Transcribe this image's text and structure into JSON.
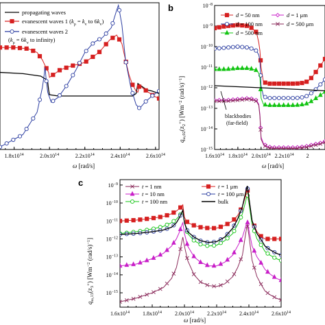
{
  "chart_data": [
    {
      "panel": "a",
      "type": "line",
      "xlabel": "ω [rad/s]",
      "xticks": [
        "1.8x10¹⁴",
        "2.0x10¹⁴",
        "2.2x10¹⁴",
        "2.4x10¹⁴",
        "2.6x10¹⁴"
      ],
      "xlim": [
        172000000000000.0,
        262000000000000.0
      ],
      "ylim_log": [
        -15.2,
        -9.3
      ],
      "series": [
        {
          "name": "propagating waves",
          "color": "#000000",
          "marker": "none",
          "x": [
            1.72,
            1.85,
            1.95,
            1.985,
            1.99,
            1.995,
            2.0,
            2.05,
            2.2,
            2.3,
            2.4,
            2.47,
            2.49,
            2.5,
            2.52,
            2.55,
            2.58,
            2.62
          ],
          "y": [
            -12.1,
            -12.15,
            -12.25,
            -12.4,
            -12.5,
            -12.8,
            -13.0,
            -13.05,
            -13.05,
            -13.05,
            -13.05,
            -13.05,
            -12.95,
            -12.55,
            -12.65,
            -12.8,
            -12.85,
            -12.95
          ]
        },
        {
          "name": "evanescent waves 1 (kρ = kv to 6kv)",
          "color": "#d62020",
          "marker": "square",
          "x": [
            1.72,
            1.8,
            1.88,
            1.93,
            1.96,
            1.98,
            1.995,
            2.0,
            2.02,
            2.06,
            2.12,
            2.2,
            2.28,
            2.34,
            2.38,
            2.41,
            2.43,
            2.45,
            2.47,
            2.49,
            2.5,
            2.51,
            2.53,
            2.56,
            2.59,
            2.62
          ],
          "y": [
            -11.1,
            -11.1,
            -11.15,
            -11.3,
            -11.6,
            -11.9,
            -12.1,
            -12.3,
            -12.2,
            -12.0,
            -11.85,
            -11.7,
            -11.3,
            -10.8,
            -10.6,
            -10.95,
            -11.6,
            -12.2,
            -12.6,
            -12.85,
            -12.9,
            -12.6,
            -12.75,
            -12.9,
            -13.05,
            -13.15
          ]
        },
        {
          "name": "evanescent waves 2 (kρ = 6kv to infinity)",
          "color": "#2a3ca0",
          "marker": "circle",
          "x": [
            1.72,
            1.85,
            1.93,
            1.96,
            1.97,
            1.975,
            1.98,
            1.99,
            2.01,
            2.05,
            2.1,
            2.15,
            2.2,
            2.25,
            2.3,
            2.35,
            2.38,
            2.39,
            2.41,
            2.43,
            2.46,
            2.49,
            2.51,
            2.54,
            2.58,
            2.62
          ],
          "y": [
            -15.1,
            -14.6,
            -13.7,
            -12.7,
            -12.2,
            -11.9,
            -12.3,
            -12.9,
            -13.3,
            -13.1,
            -12.6,
            -12.0,
            -11.3,
            -10.9,
            -10.7,
            -10.3,
            -9.6,
            -9.4,
            -10.2,
            -11.6,
            -12.7,
            -13.4,
            -13.55,
            -13.3,
            -13.05,
            -12.85
          ]
        }
      ]
    },
    {
      "panel": "b",
      "type": "line",
      "xlabel": "ω [rad/s]",
      "ylabel": "q_ω,02(z₂⁺) [Wm⁻² (rad/s)⁻¹]",
      "xticks": [
        "1.6x10¹⁴",
        "1.8x10¹⁴",
        "2.0x10¹⁴",
        "2.2x10¹⁴",
        "2"
      ],
      "xlim": [
        160000000000000.0,
        255000000000000.0
      ],
      "ylim_log": [
        -15,
        -8
      ],
      "yticks": [
        "10⁻⁸",
        "10⁻⁹",
        "10⁻¹⁰",
        "10⁻¹¹",
        "10⁻¹²",
        "10⁻¹³",
        "10⁻¹⁴",
        "10⁻¹⁵"
      ],
      "annotation": "blackbodies\n(far-field)",
      "series": [
        {
          "name": "d = 50 nm",
          "color": "#d62020",
          "marker": "square",
          "x": [
            1.6,
            1.7,
            1.8,
            1.9,
            1.96,
            1.98,
            1.99,
            2.0,
            2.02,
            2.05,
            2.1,
            2.2,
            2.3,
            2.38,
            2.42,
            2.45,
            2.5,
            2.55
          ],
          "y": [
            -9.1,
            -9.0,
            -8.95,
            -9.0,
            -9.3,
            -9.8,
            -10.2,
            -11.0,
            -11.7,
            -11.8,
            -11.8,
            -11.8,
            -11.8,
            -11.75,
            -11.6,
            -11.4,
            -11.0,
            -10.6
          ]
        },
        {
          "name": "d = 100 nm",
          "color": "#2a3ca0",
          "marker": "circle",
          "x": [
            1.6,
            1.7,
            1.8,
            1.9,
            1.96,
            1.98,
            1.99,
            2.0,
            2.02,
            2.05,
            2.1,
            2.2,
            2.3,
            2.38,
            2.42,
            2.45,
            2.5,
            2.55
          ],
          "y": [
            -10.1,
            -10.05,
            -10.0,
            -10.05,
            -10.2,
            -10.4,
            -10.7,
            -11.9,
            -12.4,
            -12.5,
            -12.5,
            -12.5,
            -12.5,
            -12.45,
            -12.3,
            -12.2,
            -11.9,
            -11.6
          ]
        },
        {
          "name": "d = 500 nm",
          "color": "#12c412",
          "marker": "triangle",
          "x": [
            1.6,
            1.7,
            1.8,
            1.9,
            1.96,
            1.98,
            1.99,
            2.0,
            2.02,
            2.05,
            2.1,
            2.2,
            2.3,
            2.38,
            2.42,
            2.45,
            2.5,
            2.55
          ],
          "y": [
            -11.1,
            -11.1,
            -11.05,
            -11.05,
            -11.15,
            -11.3,
            -11.5,
            -12.5,
            -12.8,
            -12.85,
            -12.85,
            -12.85,
            -12.85,
            -12.8,
            -12.7,
            -12.6,
            -12.4,
            -12.2
          ]
        },
        {
          "name": "d = 1 μm",
          "color": "#c81ec8",
          "marker": "diamond",
          "x": [
            1.6,
            1.7,
            1.8,
            1.9,
            1.96,
            1.98,
            1.99,
            2.0,
            2.02,
            2.05,
            2.1,
            2.2,
            2.3,
            2.38,
            2.42,
            2.45,
            2.5,
            2.55
          ],
          "y": [
            -12.6,
            -12.6,
            -12.55,
            -12.5,
            -12.6,
            -12.8,
            -13.3,
            -14.4,
            -14.7,
            -14.85,
            -14.9,
            -14.9,
            -14.9,
            -14.85,
            -14.8,
            -14.75,
            -14.7,
            -14.6
          ]
        },
        {
          "name": "d = 500 μm",
          "color": "#8a2a5a",
          "marker": "cross",
          "x": [
            1.6,
            1.7,
            1.8,
            1.9,
            1.96,
            1.98,
            1.99,
            2.0,
            2.02,
            2.05,
            2.1,
            2.2,
            2.3,
            2.38,
            2.42,
            2.45,
            2.5,
            2.55
          ],
          "y": [
            -12.65,
            -12.65,
            -12.6,
            -12.55,
            -12.65,
            -12.85,
            -13.4,
            -14.5,
            -14.75,
            -14.9,
            -14.95,
            -14.95,
            -14.95,
            -14.9,
            -14.85,
            -14.8,
            -14.75,
            -14.65
          ]
        },
        {
          "name": "blackbodies",
          "color": "#000000",
          "marker": "none",
          "x": [
            1.6,
            1.8,
            2.0,
            2.2,
            2.4,
            2.55
          ],
          "y": [
            -11.9,
            -11.95,
            -12.0,
            -12.05,
            -12.1,
            -12.15
          ]
        }
      ]
    },
    {
      "panel": "c",
      "type": "line",
      "xlabel": "ω [rad/s]",
      "ylabel": "q_ω,13(z₃⁺) [Wm⁻² (rad/s)⁻¹]",
      "xticks": [
        "1.6x10¹⁴",
        "1.8x10¹⁴",
        "2.0x10¹⁴",
        "2.2x10¹⁴",
        "2.4x10¹⁴",
        "2.6x10¹⁴"
      ],
      "xlim": [
        160000000000000.0,
        260000000000000.0
      ],
      "ylim_log": [
        -15.8,
        -8.7
      ],
      "yticks": [
        "10⁻⁹",
        "10⁻¹⁰",
        "10⁻¹¹",
        "10⁻¹²",
        "10⁻¹³",
        "10⁻¹⁴",
        "10⁻¹⁵"
      ],
      "series": [
        {
          "name": "t = 1 nm",
          "color": "#8a2a5a",
          "marker": "cross",
          "x": [
            1.6,
            1.7,
            1.8,
            1.87,
            1.92,
            1.95,
            1.97,
            1.985,
            1.99,
            2.0,
            2.02,
            2.06,
            2.1,
            2.15,
            2.2,
            2.25,
            2.3,
            2.33,
            2.36,
            2.38,
            2.39,
            2.4,
            2.42,
            2.45,
            2.48,
            2.5,
            2.53,
            2.57,
            2.6
          ],
          "y": [
            -15.5,
            -15.3,
            -15.0,
            -14.7,
            -14.2,
            -13.6,
            -12.8,
            -12.1,
            -11.9,
            -12.4,
            -13.2,
            -14.0,
            -14.4,
            -14.6,
            -14.65,
            -14.5,
            -14.1,
            -13.6,
            -12.9,
            -11.7,
            -11.2,
            -11.8,
            -13.2,
            -14.1,
            -14.6,
            -14.9,
            -15.1,
            -15.3,
            -15.4
          ]
        },
        {
          "name": "t = 10 nm",
          "color": "#c81ec8",
          "marker": "triangle",
          "x": [
            1.6,
            1.7,
            1.8,
            1.87,
            1.92,
            1.95,
            1.97,
            1.985,
            1.99,
            2.0,
            2.02,
            2.06,
            2.1,
            2.15,
            2.2,
            2.25,
            2.3,
            2.33,
            2.36,
            2.38,
            2.39,
            2.4,
            2.42,
            2.45,
            2.48,
            2.5,
            2.53,
            2.57,
            2.6
          ],
          "y": [
            -13.5,
            -13.4,
            -13.1,
            -12.8,
            -12.4,
            -12.0,
            -11.6,
            -11.2,
            -11.1,
            -11.7,
            -12.4,
            -13.0,
            -13.3,
            -13.5,
            -13.5,
            -13.3,
            -12.9,
            -12.4,
            -11.9,
            -11.3,
            -11.0,
            -11.5,
            -12.4,
            -13.0,
            -13.4,
            -13.7,
            -13.95,
            -14.2,
            -14.3
          ]
        },
        {
          "name": "t = 100 nm",
          "color": "#12c412",
          "marker": "circle-open",
          "x": [
            1.6,
            1.7,
            1.8,
            1.87,
            1.92,
            1.95,
            1.97,
            1.985,
            1.99,
            2.0,
            2.02,
            2.06,
            2.1,
            2.15,
            2.2,
            2.25,
            2.3,
            2.33,
            2.36,
            2.38,
            2.39,
            2.4,
            2.42,
            2.45,
            2.48,
            2.5,
            2.53,
            2.57,
            2.6
          ],
          "y": [
            -11.7,
            -11.6,
            -11.45,
            -11.3,
            -11.1,
            -10.9,
            -10.7,
            -10.5,
            -10.45,
            -11.1,
            -11.7,
            -12.1,
            -12.3,
            -12.4,
            -12.35,
            -12.1,
            -11.7,
            -11.2,
            -10.6,
            -9.9,
            -9.5,
            -10.0,
            -11.2,
            -12.0,
            -12.4,
            -12.7,
            -12.9,
            -13.1,
            -13.2
          ]
        },
        {
          "name": "t = 1 μm",
          "color": "#d62020",
          "marker": "square",
          "x": [
            1.6,
            1.7,
            1.8,
            1.87,
            1.92,
            1.95,
            1.97,
            1.985,
            1.99,
            2.0,
            2.02,
            2.06,
            2.1,
            2.15,
            2.2,
            2.25,
            2.3,
            2.33,
            2.36,
            2.38,
            2.39,
            2.4,
            2.42,
            2.45,
            2.48,
            2.5,
            2.53,
            2.57,
            2.6
          ],
          "y": [
            -11.0,
            -10.95,
            -10.85,
            -10.75,
            -10.6,
            -10.45,
            -10.3,
            -10.15,
            -10.1,
            -10.8,
            -11.1,
            -11.25,
            -11.35,
            -11.4,
            -11.4,
            -11.25,
            -11.0,
            -10.7,
            -10.2,
            -9.6,
            -9.2,
            -9.8,
            -11.0,
            -11.6,
            -11.9,
            -12.0,
            -12.0,
            -12.0,
            -12.0
          ]
        },
        {
          "name": "t = 100 μm",
          "color": "#2a3ca0",
          "marker": "circle",
          "x": [
            1.6,
            1.7,
            1.8,
            1.87,
            1.92,
            1.95,
            1.97,
            1.985,
            1.99,
            2.0,
            2.02,
            2.06,
            2.1,
            2.15,
            2.2,
            2.25,
            2.3,
            2.33,
            2.36,
            2.38,
            2.39,
            2.4,
            2.42,
            2.45,
            2.48,
            2.5,
            2.53,
            2.57,
            2.6
          ],
          "y": [
            -11.75,
            -11.7,
            -11.6,
            -11.5,
            -11.35,
            -11.1,
            -10.8,
            -10.5,
            -10.4,
            -11.1,
            -11.6,
            -11.9,
            -12.1,
            -12.2,
            -12.15,
            -11.9,
            -11.4,
            -10.9,
            -10.2,
            -9.4,
            -9.1,
            -9.7,
            -11.0,
            -11.7,
            -12.1,
            -12.4,
            -12.6,
            -12.8,
            -12.9
          ]
        },
        {
          "name": "bulk",
          "color": "#000000",
          "marker": "none",
          "x": [
            1.6,
            1.7,
            1.8,
            1.87,
            1.92,
            1.95,
            1.97,
            1.985,
            1.99,
            2.0,
            2.02,
            2.06,
            2.1,
            2.15,
            2.2,
            2.25,
            2.3,
            2.33,
            2.36,
            2.38,
            2.39,
            2.4,
            2.42,
            2.45,
            2.48,
            2.5,
            2.53,
            2.57,
            2.6
          ],
          "y": [
            -11.75,
            -11.7,
            -11.6,
            -11.5,
            -11.35,
            -11.1,
            -10.8,
            -10.5,
            -10.4,
            -11.1,
            -11.6,
            -11.9,
            -12.1,
            -12.2,
            -12.15,
            -11.9,
            -11.4,
            -10.9,
            -10.2,
            -9.4,
            -9.05,
            -9.7,
            -11.0,
            -11.7,
            -12.1,
            -12.4,
            -12.6,
            -12.8,
            -12.9
          ]
        }
      ]
    }
  ],
  "panels": {
    "a": {
      "xlabel": "ω [rad/s]"
    },
    "b": {
      "label": "b",
      "xlabel": "ω [rad/s]",
      "ylabel": "q",
      "ysub": "ω,02",
      "ymid": "(z",
      "ymid_sub": "2",
      "ymid_sup": "+",
      "yunit": ") [Wm",
      "yunit_sup": "−2",
      "yunit2": " (rad/s)",
      "yunit2_sup": "−1",
      "yclose": "]"
    },
    "c": {
      "label": "c",
      "xlabel": "ω [rad/s]",
      "ylabel": "q",
      "ysub": "ω,13",
      "ymid": "(z",
      "ymid_sub": "3",
      "ymid_sup": "+",
      "yunit": ") [Wm",
      "yunit_sup": "−2",
      "yunit2": " (rad/s)",
      "yunit2_sup": "−1",
      "yclose": "]"
    }
  },
  "legend_a": [
    {
      "text": "propagating waves"
    },
    {
      "text_pre": "evanescent waves 1 (",
      "k": "k",
      "sub1": "ρ",
      "mid": " = ",
      "k2": "k",
      "sub2": "v",
      "post": " to 6",
      "k3": "k",
      "sub3": "v",
      "close": ")"
    },
    {
      "text": "evanescent waves 2"
    },
    {
      "text_pre": "(",
      "k": "k",
      "sub1": "ρ",
      "mid": " = 6",
      "k2": "k",
      "sub2": "v",
      "post": " to infinity)"
    }
  ],
  "legend_b": [
    {
      "d": "d",
      "val": " = 50 nm"
    },
    {
      "d": "d",
      "val": " = 100 nm"
    },
    {
      "d": "d",
      "val": " = 500 nm"
    },
    {
      "d": "d",
      "val": " = 1 μm"
    },
    {
      "d": "d",
      "val": " = 500 μm"
    }
  ],
  "legend_c": [
    {
      "t": "t",
      "val": " = 1 nm"
    },
    {
      "t": "t",
      "val": " = 10 nm"
    },
    {
      "t": "t",
      "val": " = 100 nm"
    },
    {
      "t": "t",
      "val": " = 1 μm"
    },
    {
      "t": "t",
      "val": " = 100 μm"
    },
    {
      "t": "",
      "val": "bulk"
    }
  ],
  "annotation_b": [
    "blackbodies",
    "(far-field)"
  ]
}
